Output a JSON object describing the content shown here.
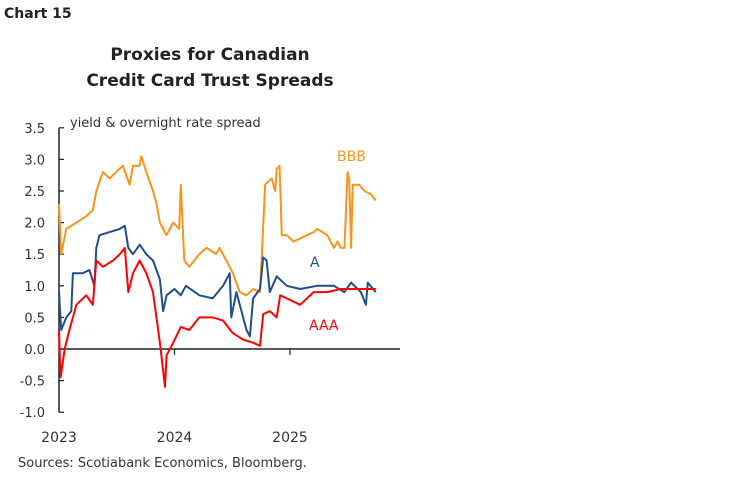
{
  "chart_label": "Chart 15",
  "source": "Sources: Scotiabank Economics, Bloomberg.",
  "chart_data": {
    "type": "line",
    "title": [
      "Proxies for Canadian",
      "Credit Card Trust Spreads"
    ],
    "ylabel": "yield & overnight rate spread",
    "xlabel": "",
    "ylim": [
      -1.0,
      3.5
    ],
    "yticks": [
      "3.5",
      "3.0",
      "2.5",
      "2.0",
      "1.5",
      "1.0",
      "0.5",
      "0.0",
      "-0.5",
      "-1.0"
    ],
    "xticks": [
      "2023",
      "2024",
      "2025"
    ],
    "grid": false,
    "series": [
      {
        "name": "BBB",
        "color": "#F7941D",
        "points": [
          [
            "2023-01-01",
            2.3
          ],
          [
            "2023-01-08",
            1.5
          ],
          [
            "2023-01-24",
            1.9
          ],
          [
            "2023-02-25",
            2.0
          ],
          [
            "2023-03-28",
            2.1
          ],
          [
            "2023-04-18",
            2.2
          ],
          [
            "2023-04-29",
            2.5
          ],
          [
            "2023-05-20",
            2.8
          ],
          [
            "2023-06-10",
            2.7
          ],
          [
            "2023-07-22",
            2.9
          ],
          [
            "2023-08-12",
            2.6
          ],
          [
            "2023-08-23",
            2.9
          ],
          [
            "2023-09-13",
            2.9
          ],
          [
            "2023-09-18",
            3.05
          ],
          [
            "2023-10-04",
            2.8
          ],
          [
            "2023-10-25",
            2.5
          ],
          [
            "2023-11-05",
            2.3
          ],
          [
            "2023-11-16",
            2.0
          ],
          [
            "2023-12-07",
            1.8
          ],
          [
            "2023-12-28",
            2.0
          ],
          [
            "2024-01-16",
            1.9
          ],
          [
            "2024-01-21",
            2.6
          ],
          [
            "2024-02-01",
            1.4
          ],
          [
            "2024-02-17",
            1.3
          ],
          [
            "2024-03-20",
            1.5
          ],
          [
            "2024-04-11",
            1.6
          ],
          [
            "2024-05-12",
            1.5
          ],
          [
            "2024-05-23",
            1.6
          ],
          [
            "2024-06-13",
            1.4
          ],
          [
            "2024-07-04",
            1.2
          ],
          [
            "2024-07-26",
            0.9
          ],
          [
            "2024-08-16",
            0.85
          ],
          [
            "2024-09-06",
            0.95
          ],
          [
            "2024-09-28",
            0.9
          ],
          [
            "2024-10-03",
            1.4
          ],
          [
            "2024-10-14",
            2.6
          ],
          [
            "2024-11-04",
            2.7
          ],
          [
            "2024-11-15",
            2.5
          ],
          [
            "2024-11-20",
            2.85
          ],
          [
            "2024-11-29",
            2.9
          ],
          [
            "2024-12-06",
            1.8
          ],
          [
            "2024-12-22",
            1.8
          ],
          [
            "2025-01-12",
            1.7
          ],
          [
            "2025-02-02",
            1.75
          ],
          [
            "2025-03-17",
            1.85
          ],
          [
            "2025-03-28",
            1.9
          ],
          [
            "2025-04-29",
            1.8
          ],
          [
            "2025-05-20",
            1.6
          ],
          [
            "2025-05-31",
            1.7
          ],
          [
            "2025-06-11",
            1.6
          ],
          [
            "2025-06-22",
            1.6
          ],
          [
            "2025-07-02",
            2.8
          ],
          [
            "2025-07-07",
            2.7
          ],
          [
            "2025-07-13",
            1.6
          ],
          [
            "2025-07-18",
            2.6
          ],
          [
            "2025-08-08",
            2.6
          ],
          [
            "2025-08-24",
            2.5
          ],
          [
            "2025-09-14",
            2.45
          ],
          [
            "2025-09-29",
            2.35
          ]
        ]
      },
      {
        "name": "A",
        "color": "#1F4E8C",
        "points": [
          [
            "2023-01-01",
            0.9
          ],
          [
            "2023-01-08",
            0.3
          ],
          [
            "2023-01-24",
            0.5
          ],
          [
            "2023-02-09",
            0.6
          ],
          [
            "2023-02-14",
            1.2
          ],
          [
            "2023-03-17",
            1.2
          ],
          [
            "2023-04-07",
            1.25
          ],
          [
            "2023-04-23",
            1.0
          ],
          [
            "2023-04-29",
            1.6
          ],
          [
            "2023-05-09",
            1.8
          ],
          [
            "2023-06-10",
            1.85
          ],
          [
            "2023-07-12",
            1.9
          ],
          [
            "2023-07-28",
            1.95
          ],
          [
            "2023-08-08",
            1.6
          ],
          [
            "2023-08-23",
            1.5
          ],
          [
            "2023-09-13",
            1.65
          ],
          [
            "2023-10-04",
            1.5
          ],
          [
            "2023-10-25",
            1.4
          ],
          [
            "2023-11-16",
            1.1
          ],
          [
            "2023-11-26",
            0.6
          ],
          [
            "2023-12-07",
            0.85
          ],
          [
            "2024-01-01",
            0.95
          ],
          [
            "2024-01-21",
            0.85
          ],
          [
            "2024-02-06",
            1.0
          ],
          [
            "2024-03-20",
            0.85
          ],
          [
            "2024-05-01",
            0.8
          ],
          [
            "2024-06-03",
            1.0
          ],
          [
            "2024-06-24",
            1.2
          ],
          [
            "2024-06-29",
            0.5
          ],
          [
            "2024-07-15",
            0.9
          ],
          [
            "2024-08-16",
            0.3
          ],
          [
            "2024-08-27",
            0.2
          ],
          [
            "2024-09-06",
            0.8
          ],
          [
            "2024-09-28",
            0.95
          ],
          [
            "2024-10-08",
            1.45
          ],
          [
            "2024-10-19",
            1.4
          ],
          [
            "2024-10-29",
            0.9
          ],
          [
            "2024-11-20",
            1.15
          ],
          [
            "2024-12-22",
            1.0
          ],
          [
            "2025-02-02",
            0.95
          ],
          [
            "2025-03-28",
            1.0
          ],
          [
            "2025-05-20",
            1.0
          ],
          [
            "2025-06-22",
            0.9
          ],
          [
            "2025-07-13",
            1.05
          ],
          [
            "2025-08-13",
            0.9
          ],
          [
            "2025-08-29",
            0.7
          ],
          [
            "2025-09-04",
            1.05
          ],
          [
            "2025-09-29",
            0.9
          ]
        ]
      },
      {
        "name": "AAA",
        "color": "#FF0000",
        "points": [
          [
            "2023-01-01",
            0.3
          ],
          [
            "2023-01-06",
            -0.45
          ],
          [
            "2023-01-19",
            0.0
          ],
          [
            "2023-02-03",
            0.3
          ],
          [
            "2023-02-25",
            0.7
          ],
          [
            "2023-03-28",
            0.85
          ],
          [
            "2023-04-18",
            0.7
          ],
          [
            "2023-04-29",
            1.4
          ],
          [
            "2023-05-20",
            1.3
          ],
          [
            "2023-06-21",
            1.4
          ],
          [
            "2023-07-12",
            1.5
          ],
          [
            "2023-07-28",
            1.6
          ],
          [
            "2023-08-08",
            0.9
          ],
          [
            "2023-08-23",
            1.2
          ],
          [
            "2023-09-13",
            1.4
          ],
          [
            "2023-10-04",
            1.2
          ],
          [
            "2023-10-25",
            0.9
          ],
          [
            "2023-11-16",
            0.1
          ],
          [
            "2023-12-02",
            -0.6
          ],
          [
            "2023-12-07",
            -0.1
          ],
          [
            "2023-12-28",
            0.1
          ],
          [
            "2024-01-21",
            0.35
          ],
          [
            "2024-02-17",
            0.3
          ],
          [
            "2024-03-20",
            0.5
          ],
          [
            "2024-05-01",
            0.5
          ],
          [
            "2024-06-03",
            0.45
          ],
          [
            "2024-07-04",
            0.25
          ],
          [
            "2024-08-05",
            0.15
          ],
          [
            "2024-09-06",
            0.1
          ],
          [
            "2024-09-28",
            0.05
          ],
          [
            "2024-10-08",
            0.55
          ],
          [
            "2024-10-29",
            0.6
          ],
          [
            "2024-11-20",
            0.5
          ],
          [
            "2024-12-01",
            0.85
          ],
          [
            "2024-12-22",
            0.8
          ],
          [
            "2025-02-02",
            0.7
          ],
          [
            "2025-03-17",
            0.9
          ],
          [
            "2025-04-29",
            0.9
          ],
          [
            "2025-06-11",
            0.95
          ],
          [
            "2025-07-23",
            0.95
          ],
          [
            "2025-09-04",
            0.95
          ],
          [
            "2025-09-29",
            0.95
          ]
        ]
      }
    ]
  }
}
